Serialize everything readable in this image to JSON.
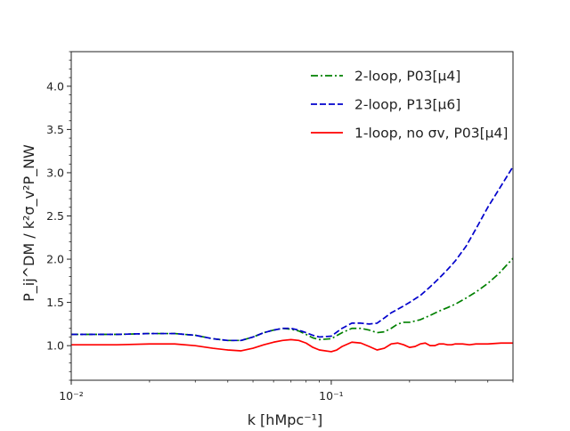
{
  "chart_data": {
    "type": "line",
    "title": "",
    "xlabel": "k [hMpc⁻¹]",
    "ylabel": "P_ij^DM / k²σ_v²P_NW",
    "xscale": "log",
    "xlim": [
      0.01,
      0.5
    ],
    "ylim": [
      0.6,
      4.4
    ],
    "grid": false,
    "legend_position": "top-right",
    "x_tick_labels": [
      "10⁻²",
      "10⁻¹"
    ],
    "y_ticks": [
      1.0,
      1.5,
      2.0,
      2.5,
      3.0,
      3.5,
      4.0
    ],
    "y_tick_labels": [
      "1.0",
      "1.5",
      "2.0",
      "2.5",
      "3.0",
      "3.5",
      "4.0"
    ],
    "series": [
      {
        "name": "2-loop, P03[μ4]",
        "color": "#008000",
        "dash": "dashdot",
        "x": [
          0.01,
          0.015,
          0.02,
          0.025,
          0.03,
          0.035,
          0.04,
          0.045,
          0.05,
          0.055,
          0.06,
          0.065,
          0.07,
          0.075,
          0.08,
          0.085,
          0.09,
          0.1,
          0.11,
          0.12,
          0.13,
          0.14,
          0.15,
          0.16,
          0.17,
          0.18,
          0.19,
          0.2,
          0.22,
          0.24,
          0.26,
          0.28,
          0.3,
          0.33,
          0.36,
          0.4,
          0.44,
          0.5
        ],
        "y": [
          1.13,
          1.13,
          1.14,
          1.14,
          1.12,
          1.08,
          1.06,
          1.06,
          1.1,
          1.15,
          1.18,
          1.2,
          1.19,
          1.17,
          1.13,
          1.09,
          1.07,
          1.08,
          1.15,
          1.2,
          1.2,
          1.18,
          1.15,
          1.16,
          1.2,
          1.25,
          1.27,
          1.27,
          1.3,
          1.35,
          1.4,
          1.44,
          1.48,
          1.55,
          1.62,
          1.72,
          1.83,
          2.01
        ]
      },
      {
        "name": "2-loop, P13[μ6]",
        "color": "#0000cc",
        "dash": "dashed",
        "x": [
          0.01,
          0.015,
          0.02,
          0.025,
          0.03,
          0.035,
          0.04,
          0.045,
          0.05,
          0.055,
          0.06,
          0.065,
          0.07,
          0.075,
          0.08,
          0.085,
          0.09,
          0.1,
          0.11,
          0.12,
          0.13,
          0.14,
          0.15,
          0.16,
          0.17,
          0.18,
          0.19,
          0.2,
          0.22,
          0.24,
          0.26,
          0.28,
          0.3,
          0.33,
          0.36,
          0.4,
          0.44,
          0.5
        ],
        "y": [
          1.13,
          1.13,
          1.14,
          1.14,
          1.12,
          1.08,
          1.06,
          1.06,
          1.1,
          1.15,
          1.18,
          1.2,
          1.2,
          1.18,
          1.15,
          1.12,
          1.1,
          1.11,
          1.2,
          1.26,
          1.26,
          1.25,
          1.26,
          1.32,
          1.38,
          1.42,
          1.46,
          1.5,
          1.58,
          1.68,
          1.78,
          1.88,
          1.98,
          2.15,
          2.35,
          2.6,
          2.8,
          3.07
        ]
      },
      {
        "name": "1-loop, no σv, P03[μ4]",
        "color": "#ff0000",
        "dash": "solid",
        "x": [
          0.01,
          0.015,
          0.02,
          0.025,
          0.03,
          0.035,
          0.04,
          0.045,
          0.05,
          0.055,
          0.06,
          0.065,
          0.07,
          0.075,
          0.08,
          0.085,
          0.09,
          0.1,
          0.105,
          0.11,
          0.12,
          0.13,
          0.14,
          0.15,
          0.16,
          0.17,
          0.18,
          0.19,
          0.2,
          0.21,
          0.22,
          0.23,
          0.24,
          0.25,
          0.26,
          0.27,
          0.28,
          0.29,
          0.3,
          0.32,
          0.34,
          0.36,
          0.38,
          0.4,
          0.45,
          0.5
        ],
        "y": [
          1.01,
          1.01,
          1.02,
          1.02,
          1.0,
          0.97,
          0.95,
          0.94,
          0.97,
          1.01,
          1.04,
          1.06,
          1.07,
          1.06,
          1.03,
          0.98,
          0.95,
          0.93,
          0.95,
          0.99,
          1.04,
          1.03,
          0.99,
          0.95,
          0.97,
          1.02,
          1.03,
          1.01,
          0.98,
          0.99,
          1.02,
          1.03,
          1.0,
          1.0,
          1.02,
          1.02,
          1.01,
          1.01,
          1.02,
          1.02,
          1.01,
          1.02,
          1.02,
          1.02,
          1.03,
          1.03
        ]
      }
    ]
  }
}
